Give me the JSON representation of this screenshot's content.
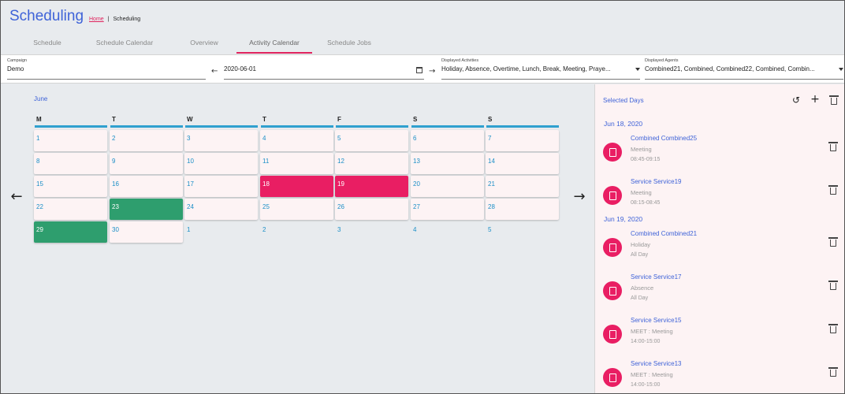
{
  "header": {
    "title": "Scheduling",
    "breadcrumb_home": "Home",
    "breadcrumb_sep": "|",
    "breadcrumb_current": "Scheduling"
  },
  "tabs": [
    {
      "label": "Schedule"
    },
    {
      "label": "Schedule Calendar"
    },
    {
      "label": "Overview"
    },
    {
      "label": "Activity Calendar"
    },
    {
      "label": "Schedule Jobs"
    }
  ],
  "active_tab": "Activity Calendar",
  "filters": {
    "campaign_label": "Campaign",
    "campaign_value": "Demo",
    "date_value": "2020-06-01",
    "activities_label": "Displayed Activities",
    "activities_value": "Holiday, Absence, Overtime, Lunch, Break, Meeting, Praye...",
    "agents_label": "Displayed Agents",
    "agents_value": "Combined21, Combined, Combined22, Combined, Combin..."
  },
  "calendar": {
    "month": "June",
    "weekdays": [
      "M",
      "T",
      "W",
      "T",
      "F",
      "S",
      "S"
    ],
    "weeks": [
      [
        {
          "d": "1",
          "s": ""
        },
        {
          "d": "2",
          "s": ""
        },
        {
          "d": "3",
          "s": ""
        },
        {
          "d": "4",
          "s": ""
        },
        {
          "d": "5",
          "s": ""
        },
        {
          "d": "6",
          "s": ""
        },
        {
          "d": "7",
          "s": ""
        }
      ],
      [
        {
          "d": "8",
          "s": ""
        },
        {
          "d": "9",
          "s": ""
        },
        {
          "d": "10",
          "s": ""
        },
        {
          "d": "11",
          "s": ""
        },
        {
          "d": "12",
          "s": ""
        },
        {
          "d": "13",
          "s": ""
        },
        {
          "d": "14",
          "s": ""
        }
      ],
      [
        {
          "d": "15",
          "s": ""
        },
        {
          "d": "16",
          "s": ""
        },
        {
          "d": "17",
          "s": ""
        },
        {
          "d": "18",
          "s": "pink"
        },
        {
          "d": "19",
          "s": "pink"
        },
        {
          "d": "20",
          "s": ""
        },
        {
          "d": "21",
          "s": ""
        }
      ],
      [
        {
          "d": "22",
          "s": ""
        },
        {
          "d": "23",
          "s": "green"
        },
        {
          "d": "24",
          "s": ""
        },
        {
          "d": "25",
          "s": ""
        },
        {
          "d": "26",
          "s": ""
        },
        {
          "d": "27",
          "s": ""
        },
        {
          "d": "28",
          "s": ""
        }
      ],
      [
        {
          "d": "29",
          "s": "green"
        },
        {
          "d": "30",
          "s": ""
        },
        {
          "d": "1",
          "s": "out"
        },
        {
          "d": "2",
          "s": "out"
        },
        {
          "d": "3",
          "s": "out"
        },
        {
          "d": "4",
          "s": "out"
        },
        {
          "d": "5",
          "s": "out"
        }
      ]
    ]
  },
  "panel": {
    "title": "Selected Days",
    "groups": [
      {
        "date": "Jun 18, 2020",
        "items": [
          {
            "name": "Combined Combined25",
            "activity": "Meeting",
            "time": "08:45-09:15"
          },
          {
            "name": "Service Service19",
            "activity": "Meeting",
            "time": "08:15-08:45"
          }
        ]
      },
      {
        "date": "Jun 19, 2020",
        "items": [
          {
            "name": "Combined Combined21",
            "activity": "Holiday",
            "time": "All Day"
          },
          {
            "name": "Service Service17",
            "activity": "Absence",
            "time": "All Day"
          },
          {
            "name": "Service Service15",
            "activity": "MEET : Meeting",
            "time": "14:00-15:00"
          },
          {
            "name": "Service Service13",
            "activity": "MEET : Meeting",
            "time": "14:00-15:00"
          }
        ]
      }
    ]
  },
  "colors": {
    "accent_blue": "#3f63d8",
    "accent_pink": "#e91e63",
    "selected_green": "#2e9e6e",
    "weekday_underline": "#2fa0cf"
  }
}
